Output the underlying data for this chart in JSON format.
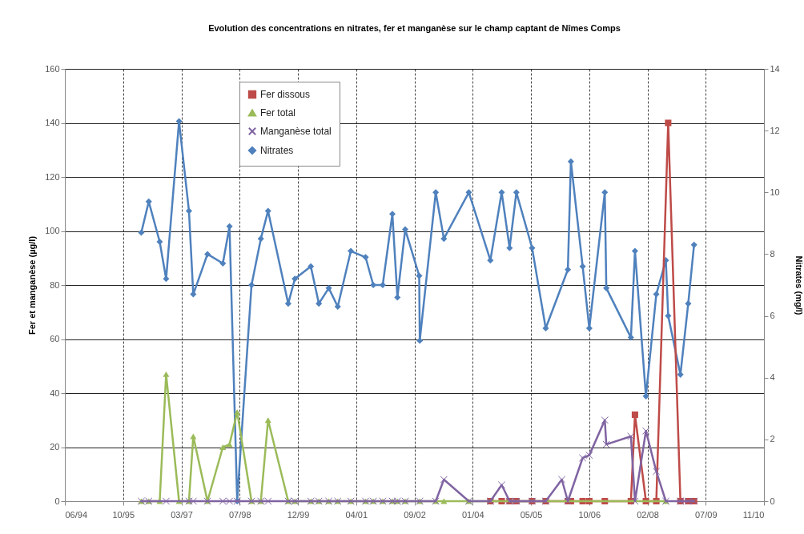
{
  "chart_data": {
    "type": "line",
    "title": "Evolution des concentrations en nitrates, fer et manganèse sur le champ captant de Nîmes Comps",
    "ylabel": "Fer et manganèse (µg/l)",
    "y2label": "Nitrates (mg/l)",
    "xlim": [
      "1994-06-16",
      "2010-11-19"
    ],
    "xticks": [
      {
        "value": "1994-06-16",
        "label": "06/94"
      },
      {
        "value": "1995-10-29",
        "label": "10/95"
      },
      {
        "value": "1997-03-12",
        "label": "03/97"
      },
      {
        "value": "1998-07-25",
        "label": "07/98"
      },
      {
        "value": "1999-12-07",
        "label": "12/99"
      },
      {
        "value": "2001-04-20",
        "label": "04/01"
      },
      {
        "value": "2002-09-02",
        "label": "09/02"
      },
      {
        "value": "2004-01-15",
        "label": "01/04"
      },
      {
        "value": "2005-05-29",
        "label": "05/05"
      },
      {
        "value": "2006-10-11",
        "label": "10/06"
      },
      {
        "value": "2008-02-23",
        "label": "02/08"
      },
      {
        "value": "2009-07-07",
        "label": "07/09"
      },
      {
        "value": "2010-11-19",
        "label": "11/10"
      }
    ],
    "ylim": [
      0,
      160
    ],
    "yticks": [
      0,
      20,
      40,
      60,
      80,
      100,
      120,
      140,
      160
    ],
    "y2lim": [
      0,
      14
    ],
    "y2ticks": [
      0,
      2,
      4,
      6,
      8,
      10,
      12,
      14
    ],
    "grid": true,
    "legend": "top",
    "line_style": "solid",
    "series": [
      {
        "name": "Fer dissous",
        "color": "#be4b48",
        "marker": "square",
        "x": [
          "2004-06-15",
          "2004-09-20",
          "2004-11-27",
          "2005-01-24",
          "2005-06-08",
          "2005-10-03",
          "2006-04-11",
          "2006-05-07",
          "2006-08-16",
          "2006-10-12",
          "2007-02-22",
          "2007-10-04",
          "2007-11-08",
          "2008-02-10",
          "2008-05-09",
          "2008-08-19",
          "2008-12-02",
          "2009-02-07",
          "2009-03-29"
        ],
        "values": [
          0,
          0,
          0,
          0,
          0,
          0,
          0,
          0,
          0,
          0,
          0,
          0,
          32,
          0,
          0,
          140,
          0,
          0,
          0
        ]
      },
      {
        "name": "Fer total",
        "color": "#9bbb59",
        "marker": "triangle",
        "x": [
          "1996-04-02",
          "1996-06-05",
          "1996-09-07",
          "1996-11-01",
          "1997-02-20",
          "1997-05-16",
          "1997-06-22",
          "1997-10-22",
          "1998-03-03",
          "1998-04-29",
          "1998-07-04",
          "1998-11-04",
          "1999-01-23",
          "1999-03-26",
          "1999-09-15",
          "1999-11-11",
          "2000-03-27",
          "2000-06-04",
          "2000-08-28",
          "2000-11-13",
          "2001-03-05",
          "2001-07-10",
          "2001-09-14",
          "2001-12-04",
          "2002-02-25",
          "2002-04-09",
          "2002-06-15",
          "2002-10-18",
          "2003-03-04",
          "2003-05-13",
          "2003-12-13",
          "2008-07-30"
        ],
        "values": [
          0,
          0,
          0,
          47,
          0,
          0,
          24,
          0,
          20,
          21,
          33,
          0,
          0,
          30,
          0,
          0,
          0,
          0,
          0,
          0,
          0,
          0,
          0,
          0,
          0,
          0,
          0,
          0,
          0,
          0,
          0,
          0
        ]
      },
      {
        "name": "Manganèse total",
        "color": "#8064a2",
        "marker": "cross",
        "x": [
          "1996-04-02",
          "1996-06-05",
          "1996-11-01",
          "1997-05-16",
          "1997-06-22",
          "1997-10-22",
          "1998-03-03",
          "1998-04-29",
          "1998-07-04",
          "1998-11-04",
          "1999-01-23",
          "1999-03-26",
          "1999-09-15",
          "1999-11-11",
          "2000-03-27",
          "2000-06-04",
          "2000-08-28",
          "2000-11-13",
          "2001-03-05",
          "2001-07-10",
          "2001-09-14",
          "2001-12-04",
          "2002-02-25",
          "2002-04-09",
          "2002-06-15",
          "2002-10-18",
          "2003-03-04",
          "2003-05-13",
          "2003-12-13",
          "2004-06-15",
          "2004-09-20",
          "2004-11-27",
          "2005-01-24",
          "2005-06-08",
          "2005-10-03",
          "2006-02-18",
          "2006-04-11",
          "2006-08-16",
          "2006-10-12",
          "2007-02-22",
          "2007-03-07",
          "2007-10-04",
          "2007-11-08",
          "2008-02-10",
          "2008-05-09",
          "2008-07-30",
          "2008-12-02",
          "2009-02-07",
          "2009-03-29"
        ],
        "values": [
          0,
          0,
          0,
          0,
          0,
          0,
          0,
          0,
          0,
          0,
          0,
          0,
          0,
          0,
          0,
          0,
          0,
          0,
          0,
          0,
          0,
          0,
          0,
          0,
          0,
          0,
          0,
          8,
          0,
          0,
          6,
          0,
          0,
          0,
          0,
          8,
          0,
          16,
          17,
          30,
          21,
          24,
          0,
          26,
          11,
          0,
          0,
          0,
          0
        ]
      },
      {
        "name": "Nitrates",
        "color": "#4f81bd",
        "marker": "diamond",
        "axis": "y2",
        "x": [
          "1996-04-02",
          "1996-06-05",
          "1996-09-07",
          "1996-11-01",
          "1997-02-20",
          "1997-05-16",
          "1997-06-22",
          "1997-10-22",
          "1998-03-03",
          "1998-04-29",
          "1998-07-04",
          "1998-11-04",
          "1999-01-23",
          "1999-03-26",
          "1999-09-15",
          "1999-11-11",
          "2000-03-27",
          "2000-06-04",
          "2000-08-28",
          "2000-11-13",
          "2001-03-05",
          "2001-07-10",
          "2001-09-14",
          "2001-12-04",
          "2002-02-25",
          "2002-04-09",
          "2002-06-15",
          "2002-10-13",
          "2002-10-18",
          "2003-03-04",
          "2003-05-13",
          "2003-12-13",
          "2004-06-15",
          "2004-09-20",
          "2004-11-27",
          "2005-01-24",
          "2005-06-08",
          "2005-10-03",
          "2006-04-11",
          "2006-05-07",
          "2006-08-16",
          "2006-10-12",
          "2007-02-22",
          "2007-03-07",
          "2007-10-04",
          "2007-11-08",
          "2008-02-10",
          "2008-05-09",
          "2008-07-30",
          "2008-08-19",
          "2008-12-02",
          "2009-02-07",
          "2009-03-29"
        ],
        "values": [
          8.7,
          9.7,
          8.4,
          7.2,
          12.3,
          9.4,
          6.7,
          8.0,
          7.7,
          8.9,
          0,
          7.0,
          8.5,
          9.4,
          6.4,
          7.2,
          7.6,
          6.4,
          6.9,
          6.3,
          8.1,
          7.9,
          7.0,
          7.0,
          9.3,
          6.6,
          8.8,
          7.3,
          5.2,
          10.0,
          8.5,
          10.0,
          7.8,
          10.0,
          8.2,
          10.0,
          8.2,
          5.6,
          7.5,
          11.0,
          7.6,
          5.6,
          10.0,
          6.9,
          5.3,
          8.1,
          3.4,
          6.7,
          7.8,
          6.0,
          4.1,
          6.4,
          8.3
        ]
      }
    ]
  }
}
